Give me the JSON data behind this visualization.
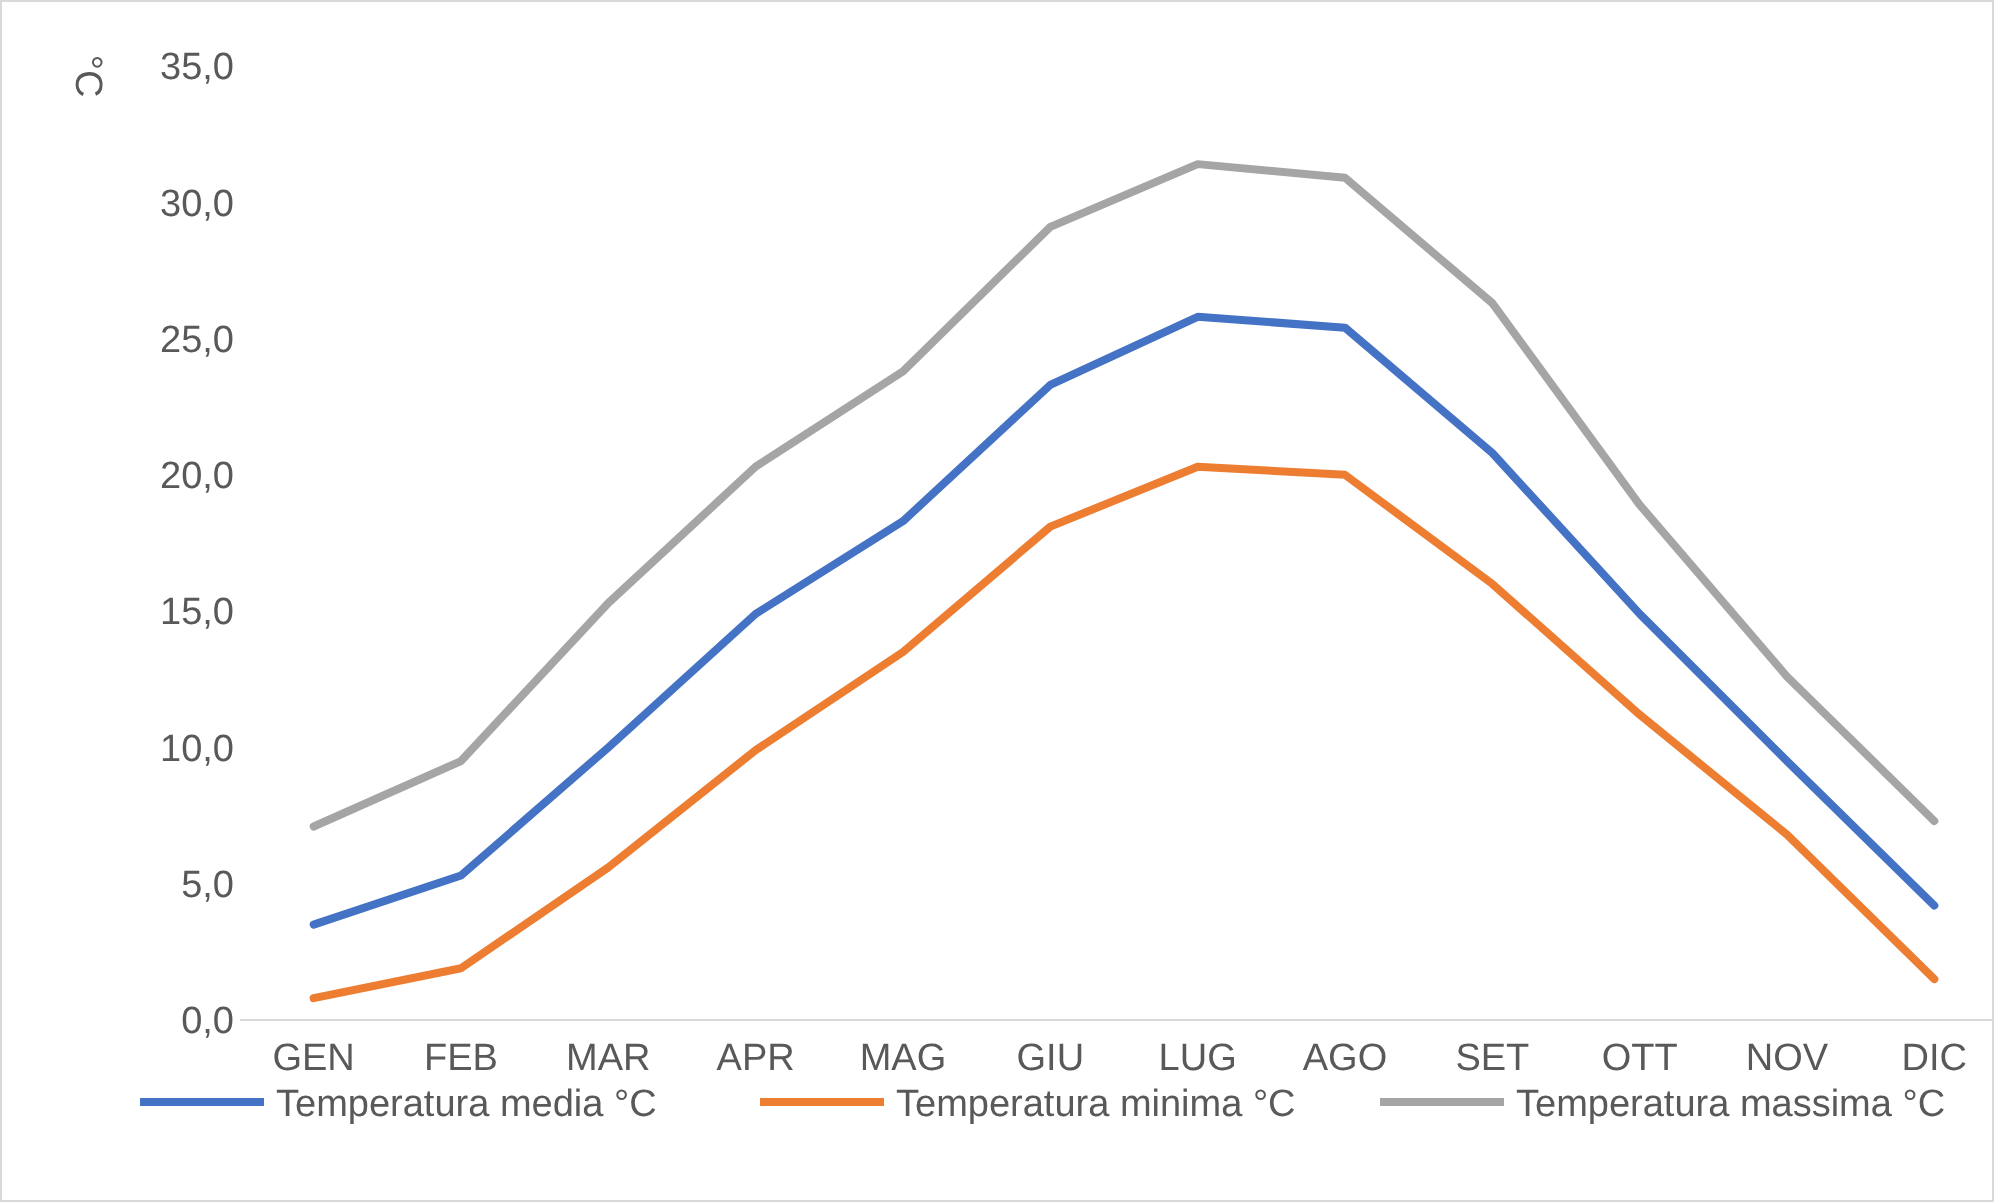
{
  "chart_data": {
    "type": "line",
    "ylabel": "°C",
    "categories": [
      "GEN",
      "FEB",
      "MAR",
      "APR",
      "MAG",
      "GIU",
      "LUG",
      "AGO",
      "SET",
      "OTT",
      "NOV",
      "DIC"
    ],
    "series": [
      {
        "name": "Temperatura media °C",
        "color": "#4472c4",
        "values": [
          3.5,
          5.3,
          10.0,
          14.9,
          18.3,
          23.3,
          25.8,
          25.4,
          20.8,
          14.9,
          9.5,
          4.2
        ]
      },
      {
        "name": "Temperatura minima °C",
        "color": "#ed7d31",
        "values": [
          0.8,
          1.9,
          5.6,
          9.9,
          13.5,
          18.1,
          20.3,
          20.0,
          16.0,
          11.2,
          6.8,
          1.5
        ]
      },
      {
        "name": "Temperatura massima °C",
        "color": "#a5a5a5",
        "values": [
          7.1,
          9.5,
          15.3,
          20.3,
          23.8,
          29.1,
          31.4,
          30.9,
          26.3,
          18.9,
          12.6,
          7.3
        ]
      }
    ],
    "ylim": [
      0,
      35
    ],
    "yticks": [
      {
        "value": 0,
        "label": "0,0"
      },
      {
        "value": 5,
        "label": "5,0"
      },
      {
        "value": 10,
        "label": "10,0"
      },
      {
        "value": 15,
        "label": "15,0"
      },
      {
        "value": 20,
        "label": "20,0"
      },
      {
        "value": 25,
        "label": "25,0"
      },
      {
        "value": 30,
        "label": "30,0"
      },
      {
        "value": 35,
        "label": "35,0"
      }
    ],
    "grid": false,
    "legend": "bottom",
    "marker": "none",
    "line_style": "solid"
  }
}
